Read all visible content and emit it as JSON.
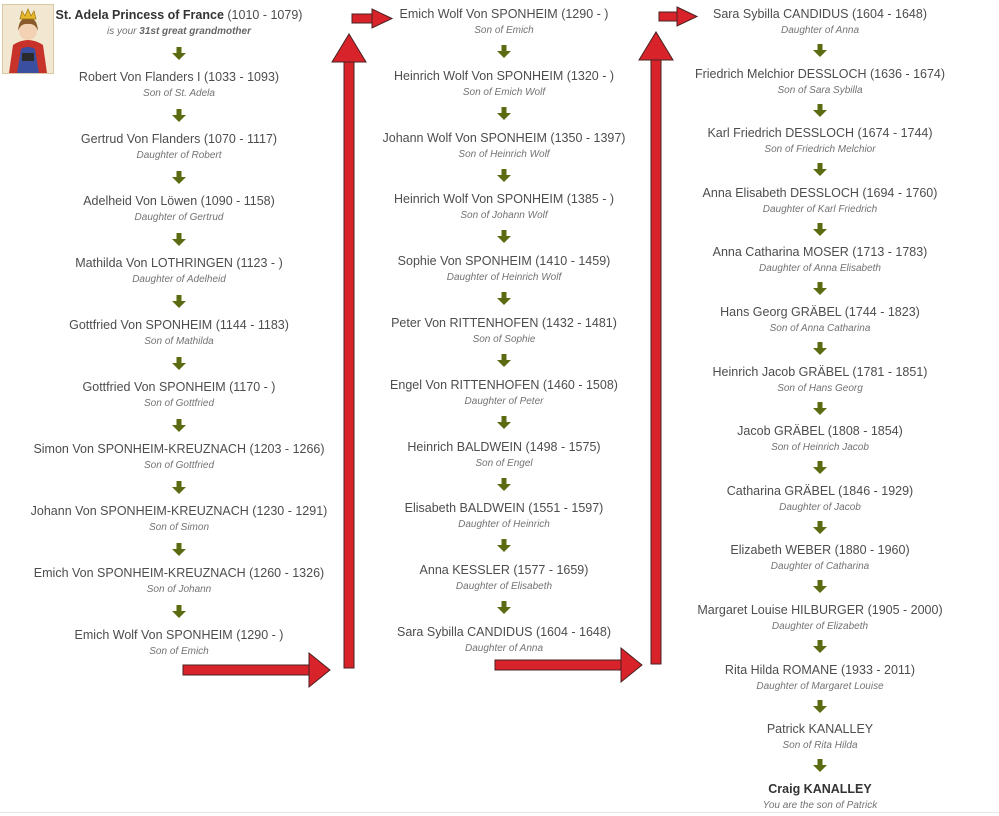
{
  "columns": [
    [
      {
        "name": "St. Adela Princess of France",
        "dates": "(1010 - 1079)",
        "relation": "is your",
        "relation_bold": "31st great grandmother",
        "top": true
      },
      {
        "name": "Robert Von Flanders I",
        "dates": "(1033 - 1093)",
        "relation": "Son of St. Adela"
      },
      {
        "name": "Gertrud Von Flanders",
        "dates": "(1070 - 1117)",
        "relation": "Daughter of Robert"
      },
      {
        "name": "Adelheid Von Löwen",
        "dates": "(1090 - 1158)",
        "relation": "Daughter of Gertrud"
      },
      {
        "name": "Mathilda Von LOTHRINGEN",
        "dates": "(1123 - )",
        "relation": "Daughter of Adelheid"
      },
      {
        "name": "Gottfried Von SPONHEIM",
        "dates": "(1144 - 1183)",
        "relation": "Son of Mathilda"
      },
      {
        "name": "Gottfried Von SPONHEIM",
        "dates": "(1170 - )",
        "relation": "Son of Gottfried"
      },
      {
        "name": "Simon Von SPONHEIM-KREUZNACH",
        "dates": "(1203 - 1266)",
        "relation": "Son of Gottfried"
      },
      {
        "name": "Johann Von SPONHEIM-KREUZNACH",
        "dates": "(1230 - 1291)",
        "relation": "Son of Simon"
      },
      {
        "name": "Emich Von SPONHEIM-KREUZNACH",
        "dates": "(1260 - 1326)",
        "relation": "Son of Johann"
      },
      {
        "name": "Emich Wolf Von SPONHEIM",
        "dates": "(1290 - )",
        "relation": "Son of Emich"
      }
    ],
    [
      {
        "name": "Emich Wolf Von SPONHEIM",
        "dates": "(1290 - )",
        "relation": "Son of Emich"
      },
      {
        "name": "Heinrich Wolf Von SPONHEIM",
        "dates": "(1320 - )",
        "relation": "Son of Emich Wolf"
      },
      {
        "name": "Johann Wolf Von SPONHEIM",
        "dates": "(1350 - 1397)",
        "relation": "Son of Heinrich Wolf"
      },
      {
        "name": "Heinrich Wolf Von SPONHEIM",
        "dates": "(1385 - )",
        "relation": "Son of Johann Wolf"
      },
      {
        "name": "Sophie Von SPONHEIM",
        "dates": "(1410 - 1459)",
        "relation": "Daughter of Heinrich Wolf"
      },
      {
        "name": "Peter Von RITTENHOFEN",
        "dates": "(1432 - 1481)",
        "relation": "Son of Sophie"
      },
      {
        "name": "Engel Von RITTENHOFEN",
        "dates": "(1460 - 1508)",
        "relation": "Daughter of Peter"
      },
      {
        "name": "Heinrich BALDWEIN",
        "dates": "(1498 - 1575)",
        "relation": "Son of Engel"
      },
      {
        "name": "Elisabeth BALDWEIN",
        "dates": "(1551 - 1597)",
        "relation": "Daughter of Heinrich"
      },
      {
        "name": "Anna KESSLER",
        "dates": "(1577 - 1659)",
        "relation": "Daughter of Elisabeth"
      },
      {
        "name": "Sara Sybilla CANDIDUS",
        "dates": "(1604 - 1648)",
        "relation": "Daughter of Anna"
      }
    ],
    [
      {
        "name": "Sara Sybilla CANDIDUS",
        "dates": "(1604 - 1648)",
        "relation": "Daughter of Anna"
      },
      {
        "name": "Friedrich Melchior DESSLOCH",
        "dates": "(1636 - 1674)",
        "relation": "Son of Sara Sybilla"
      },
      {
        "name": "Karl Friedrich DESSLOCH",
        "dates": "(1674 - 1744)",
        "relation": "Son of Friedrich Melchior"
      },
      {
        "name": "Anna Elisabeth DESSLOCH",
        "dates": "(1694 - 1760)",
        "relation": "Daughter of Karl Friedrich"
      },
      {
        "name": "Anna Catharina MOSER",
        "dates": "(1713 - 1783)",
        "relation": "Daughter of Anna Elisabeth"
      },
      {
        "name": "Hans Georg GRÄBEL",
        "dates": "(1744 - 1823)",
        "relation": "Son of Anna Catharina"
      },
      {
        "name": "Heinrich Jacob GRÄBEL",
        "dates": "(1781 - 1851)",
        "relation": "Son of Hans Georg"
      },
      {
        "name": "Jacob GRÄBEL",
        "dates": "(1808 - 1854)",
        "relation": "Son of Heinrich Jacob"
      },
      {
        "name": "Catharina GRÄBEL",
        "dates": "(1846 - 1929)",
        "relation": "Daughter of Jacob"
      },
      {
        "name": "Elizabeth WEBER",
        "dates": "(1880 - 1960)",
        "relation": "Daughter of Catharina"
      },
      {
        "name": "Margaret Louise HILBURGER",
        "dates": "(1905 - 2000)",
        "relation": "Daughter of Elizabeth"
      },
      {
        "name": "Rita Hilda ROMANE",
        "dates": "(1933 - 2011)",
        "relation": "Daughter of Margaret Louise"
      },
      {
        "name": "Patrick KANALLEY",
        "dates": "",
        "relation": "Son of Rita Hilda"
      },
      {
        "name": "Craig KANALLEY",
        "dates": "",
        "relation": "You are the son of Patrick",
        "bottom": true
      }
    ]
  ],
  "colors": {
    "arrow_green": "#5b6b12",
    "flow_arrow_red": "#d8232a",
    "flow_arrow_outline": "#4a2020"
  },
  "icons": {
    "portrait": "portrait-icon",
    "down_arrow": "down-arrow-icon"
  }
}
